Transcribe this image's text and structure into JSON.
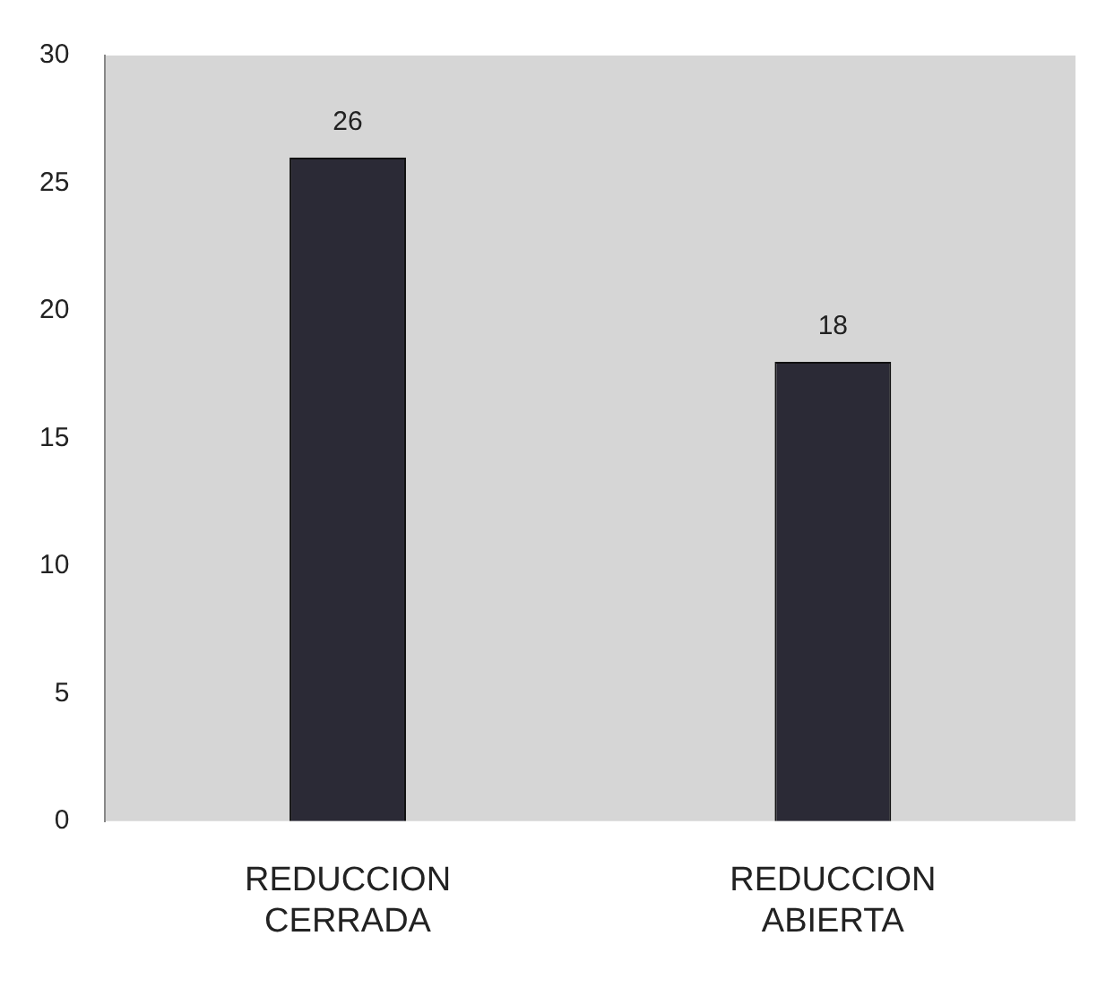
{
  "chart_data": {
    "type": "bar",
    "categories": [
      "REDUCCION CERRADA",
      "REDUCCION ABIERTA"
    ],
    "values": [
      26,
      18
    ],
    "color": "#2b2a36",
    "ylim": [
      0,
      30
    ],
    "yticks": [
      0,
      5,
      10,
      15,
      20,
      25,
      30
    ],
    "grid": false,
    "legend": false,
    "data_labels": true
  }
}
